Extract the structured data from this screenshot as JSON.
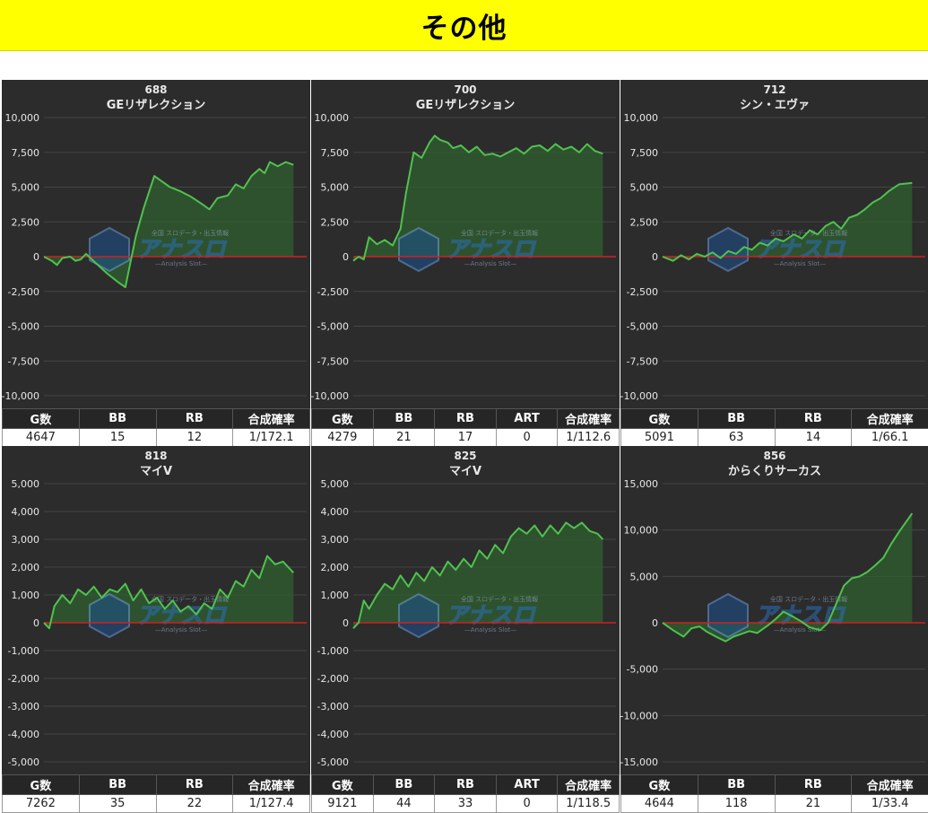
{
  "header": {
    "title": "その他"
  },
  "colors": {
    "banner": "#ffff00",
    "panel_bg": "#2c2c2c",
    "line": "#4fc24f",
    "fill": "#2f5f2f",
    "zero_line": "#cc2222",
    "grid": "#454545"
  },
  "watermark": {
    "brand": "アナスロ",
    "sub": "—Analysis Slot—",
    "tagline": "全国 スロデータ・出玉情報"
  },
  "chart_data": [
    {
      "type": "area",
      "id": "688",
      "title": "GEリザレクション",
      "ylim": [
        -10000,
        10000
      ],
      "yticks": [
        "10,000",
        "7,500",
        "5,000",
        "2,500",
        "0",
        "-2,500",
        "-5,000",
        "-7,500",
        "-10,000"
      ],
      "ytick_values": [
        10000,
        7500,
        5000,
        2500,
        0,
        -2500,
        -5000,
        -7500,
        -10000
      ],
      "x": [
        0,
        3,
        5,
        7,
        10,
        12,
        14,
        16,
        20,
        24,
        28,
        31,
        35,
        38,
        42,
        45,
        48,
        52,
        56,
        60,
        63,
        66,
        70,
        73,
        76,
        79,
        82,
        84,
        86,
        89,
        92,
        95
      ],
      "values": [
        0,
        -300,
        -600,
        -100,
        0,
        -300,
        -200,
        200,
        -500,
        -1200,
        -1800,
        -2200,
        1500,
        3500,
        5800,
        5400,
        5000,
        4700,
        4300,
        3800,
        3400,
        4200,
        4400,
        5200,
        4900,
        5800,
        6300,
        6000,
        6800,
        6500,
        6800,
        6600
      ],
      "table": {
        "headers": [
          "G数",
          "BB",
          "RB",
          "合成確率"
        ],
        "values": [
          "4647",
          "15",
          "12",
          "1/172.1"
        ]
      }
    },
    {
      "type": "area",
      "id": "700",
      "title": "GEリザレクション",
      "ylim": [
        -10000,
        10000
      ],
      "yticks": [
        "10,000",
        "7,500",
        "5,000",
        "2,500",
        "0",
        "-2,500",
        "-5,000",
        "-7,500",
        "-10,000"
      ],
      "ytick_values": [
        10000,
        7500,
        5000,
        2500,
        0,
        -2500,
        -5000,
        -7500,
        -10000
      ],
      "x": [
        0,
        2,
        4,
        6,
        9,
        12,
        15,
        18,
        20,
        23,
        26,
        29,
        31,
        33,
        36,
        38,
        41,
        44,
        47,
        50,
        53,
        56,
        59,
        62,
        65,
        68,
        71,
        74,
        77,
        80,
        83,
        86,
        89,
        92,
        95
      ],
      "values": [
        -300,
        0,
        -200,
        1400,
        900,
        1200,
        800,
        2000,
        4500,
        7500,
        7100,
        8200,
        8700,
        8400,
        8200,
        7800,
        8000,
        7500,
        7900,
        7300,
        7400,
        7200,
        7500,
        7800,
        7400,
        7900,
        8000,
        7600,
        8100,
        7700,
        7900,
        7500,
        8100,
        7600,
        7400
      ],
      "table": {
        "headers": [
          "G数",
          "BB",
          "RB",
          "ART",
          "合成確率"
        ],
        "values": [
          "4279",
          "21",
          "17",
          "0",
          "1/112.6"
        ]
      }
    },
    {
      "type": "area",
      "id": "712",
      "title": "シン・エヴァ",
      "ylim": [
        -10000,
        10000
      ],
      "yticks": [
        "10,000",
        "7,500",
        "5,000",
        "2,500",
        "0",
        "-2,500",
        "-5,000",
        "-7,500",
        "-10,000"
      ],
      "ytick_values": [
        10000,
        7500,
        5000,
        2500,
        0,
        -2500,
        -5000,
        -7500,
        -10000
      ],
      "x": [
        0,
        4,
        7,
        10,
        13,
        16,
        19,
        22,
        25,
        28,
        31,
        34,
        37,
        40,
        43,
        46,
        50,
        53,
        56,
        59,
        62,
        65,
        68,
        71,
        74,
        77,
        80,
        83,
        86,
        90,
        95
      ],
      "values": [
        0,
        -300,
        100,
        -200,
        200,
        0,
        300,
        -100,
        400,
        200,
        700,
        500,
        1000,
        800,
        1300,
        1100,
        1600,
        1300,
        1900,
        1600,
        2200,
        2500,
        2000,
        2800,
        3000,
        3400,
        3900,
        4200,
        4700,
        5200,
        5300
      ],
      "table": {
        "headers": [
          "G数",
          "BB",
          "RB",
          "合成確率"
        ],
        "values": [
          "5091",
          "63",
          "14",
          "1/66.1"
        ]
      }
    },
    {
      "type": "area",
      "id": "818",
      "title": "マイV",
      "ylim": [
        -5000,
        5000
      ],
      "yticks": [
        "5,000",
        "4,000",
        "3,000",
        "2,000",
        "1,000",
        "0",
        "-1,000",
        "-2,000",
        "-3,000",
        "-4,000",
        "-5,000"
      ],
      "ytick_values": [
        5000,
        4000,
        3000,
        2000,
        1000,
        0,
        -1000,
        -2000,
        -3000,
        -4000,
        -5000
      ],
      "x": [
        0,
        2,
        4,
        7,
        10,
        13,
        16,
        19,
        22,
        25,
        28,
        31,
        34,
        37,
        40,
        43,
        46,
        49,
        52,
        55,
        58,
        61,
        64,
        67,
        70,
        73,
        76,
        79,
        82,
        85,
        88,
        91,
        95
      ],
      "values": [
        0,
        -200,
        600,
        1000,
        700,
        1200,
        1000,
        1300,
        900,
        1200,
        1100,
        1400,
        800,
        1200,
        700,
        900,
        500,
        800,
        400,
        600,
        300,
        700,
        500,
        1200,
        900,
        1500,
        1300,
        1900,
        1600,
        2400,
        2100,
        2200,
        1800
      ],
      "table": {
        "headers": [
          "G数",
          "BB",
          "RB",
          "合成確率"
        ],
        "values": [
          "7262",
          "35",
          "22",
          "1/127.4"
        ]
      }
    },
    {
      "type": "area",
      "id": "825",
      "title": "マイV",
      "ylim": [
        -5000,
        5000
      ],
      "yticks": [
        "5,000",
        "4,000",
        "3,000",
        "2,000",
        "1,000",
        "0",
        "-1,000",
        "-2,000",
        "-3,000",
        "-4,000",
        "-5,000"
      ],
      "ytick_values": [
        5000,
        4000,
        3000,
        2000,
        1000,
        0,
        -1000,
        -2000,
        -3000,
        -4000,
        -5000
      ],
      "x": [
        0,
        2,
        4,
        6,
        9,
        12,
        15,
        18,
        21,
        24,
        27,
        30,
        33,
        36,
        39,
        42,
        45,
        48,
        51,
        54,
        57,
        60,
        63,
        66,
        69,
        72,
        75,
        78,
        81,
        84,
        87,
        90,
        93,
        95
      ],
      "values": [
        -200,
        0,
        800,
        500,
        1000,
        1400,
        1200,
        1700,
        1300,
        1800,
        1500,
        2000,
        1700,
        2200,
        1900,
        2300,
        2000,
        2600,
        2300,
        2800,
        2500,
        3100,
        3400,
        3200,
        3500,
        3100,
        3500,
        3200,
        3600,
        3400,
        3600,
        3300,
        3200,
        3000
      ],
      "table": {
        "headers": [
          "G数",
          "BB",
          "RB",
          "ART",
          "合成確率"
        ],
        "values": [
          "9121",
          "44",
          "33",
          "0",
          "1/118.5"
        ]
      }
    },
    {
      "type": "area",
      "id": "856",
      "title": "からくりサーカス",
      "ylim": [
        -15000,
        15000
      ],
      "yticks": [
        "15,000",
        "10,000",
        "5,000",
        "0",
        "-5,000",
        "-10,000",
        "-15,000"
      ],
      "ytick_values": [
        15000,
        10000,
        5000,
        0,
        -5000,
        -10000,
        -15000
      ],
      "x": [
        0,
        4,
        8,
        11,
        14,
        17,
        21,
        24,
        27,
        30,
        33,
        36,
        40,
        43,
        46,
        50,
        53,
        56,
        60,
        63,
        66,
        69,
        72,
        75,
        78,
        81,
        84,
        87,
        90,
        93,
        95
      ],
      "values": [
        0,
        -800,
        -1500,
        -600,
        -400,
        -1000,
        -1600,
        -2000,
        -1500,
        -1200,
        -900,
        -1100,
        -300,
        400,
        1200,
        600,
        100,
        -500,
        -800,
        0,
        2000,
        4000,
        4800,
        5000,
        5500,
        6200,
        7000,
        8500,
        9800,
        11000,
        11800
      ],
      "table": {
        "headers": [
          "G数",
          "BB",
          "RB",
          "合成確率"
        ],
        "values": [
          "4644",
          "118",
          "21",
          "1/33.4"
        ]
      }
    }
  ]
}
